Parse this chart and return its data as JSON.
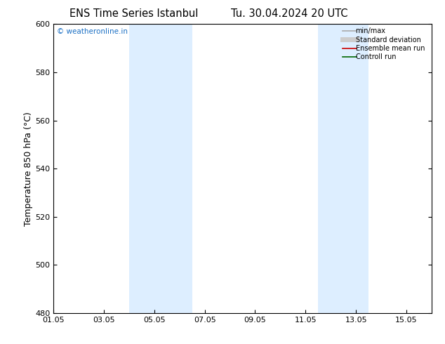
{
  "title_left": "ENS Time Series Istanbul",
  "title_right": "Tu. 30.04.2024 20 UTC",
  "ylabel": "Temperature 850 hPa (°C)",
  "xlim": [
    0,
    15
  ],
  "ylim": [
    480,
    600
  ],
  "yticks": [
    480,
    500,
    520,
    540,
    560,
    580,
    600
  ],
  "xtick_labels": [
    "01.05",
    "03.05",
    "05.05",
    "07.05",
    "09.05",
    "11.05",
    "13.05",
    "15.05"
  ],
  "xtick_positions": [
    0,
    2,
    4,
    6,
    8,
    10,
    12,
    14
  ],
  "shaded_bands": [
    {
      "x_start": 3.0,
      "x_end": 5.5
    },
    {
      "x_start": 10.5,
      "x_end": 12.5
    }
  ],
  "shaded_color": "#ddeeff",
  "watermark_text": "© weatheronline.in",
  "watermark_color": "#1a6fc4",
  "legend_entries": [
    {
      "label": "min/max",
      "color": "#aaaaaa",
      "lw": 1.2
    },
    {
      "label": "Standard deviation",
      "color": "#cccccc",
      "lw": 5
    },
    {
      "label": "Ensemble mean run",
      "color": "#cc0000",
      "lw": 1.2
    },
    {
      "label": "Controll run",
      "color": "#006600",
      "lw": 1.2
    }
  ],
  "bg_color": "#ffffff",
  "title_fontsize": 10.5,
  "label_fontsize": 9,
  "tick_fontsize": 8
}
